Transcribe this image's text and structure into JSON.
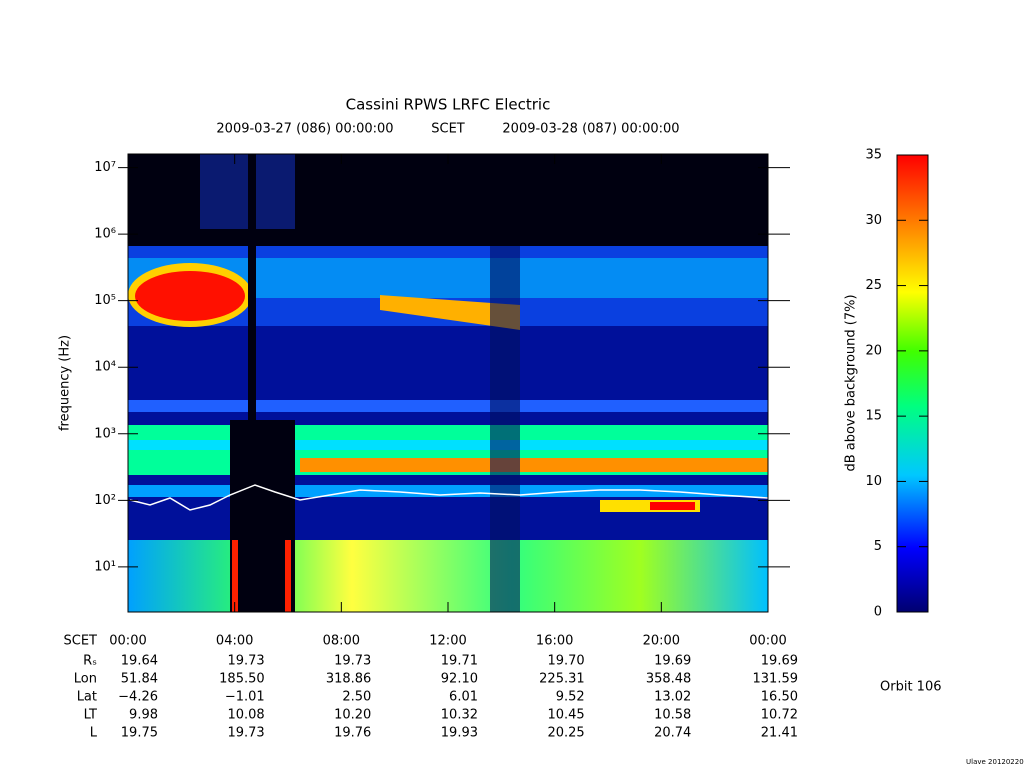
{
  "chart_data": {
    "type": "spectrogram",
    "title": "Cassini RPWS LRFC Electric",
    "subtitle": {
      "start": "2009-03-27 (086) 00:00:00",
      "mid": "SCET",
      "end": "2009-03-28 (087) 00:00:00"
    },
    "y_label": "frequency (Hz)",
    "log_scale": true,
    "ylim": [
      2.1,
      16000000
    ],
    "yticks": [
      {
        "value": 10,
        "label": "10¹"
      },
      {
        "value": 100,
        "label": "10²"
      },
      {
        "value": 1000,
        "label": "10³"
      },
      {
        "value": 10000,
        "label": "10⁴"
      },
      {
        "value": 100000,
        "label": "10⁵"
      },
      {
        "value": 1000000,
        "label": "10⁶"
      },
      {
        "value": 10000000,
        "label": "10⁷"
      }
    ],
    "x_label": "SCET",
    "xlim": [
      0,
      24
    ],
    "xticks": [
      {
        "value": 0,
        "label": "00:00"
      },
      {
        "value": 4,
        "label": "04:00"
      },
      {
        "value": 8,
        "label": "08:00"
      },
      {
        "value": 12,
        "label": "12:00"
      },
      {
        "value": 16,
        "label": "16:00"
      },
      {
        "value": 20,
        "label": "20:00"
      },
      {
        "value": 24,
        "label": "00:00"
      }
    ],
    "ephemeris": [
      {
        "name": "Rₛ",
        "values": [
          "19.64",
          "19.73",
          "19.73",
          "19.71",
          "19.70",
          "19.69",
          "19.69"
        ]
      },
      {
        "name": "Lon",
        "values": [
          "51.84",
          "185.50",
          "318.86",
          "92.10",
          "225.31",
          "358.48",
          "131.59"
        ]
      },
      {
        "name": "Lat",
        "values": [
          "−4.26",
          "−1.01",
          "2.50",
          "6.01",
          "9.52",
          "13.02",
          "16.50"
        ]
      },
      {
        "name": "LT",
        "values": [
          "9.98",
          "10.08",
          "10.20",
          "10.32",
          "10.45",
          "10.58",
          "10.72"
        ]
      },
      {
        "name": "L",
        "values": [
          "19.75",
          "19.73",
          "19.76",
          "19.93",
          "20.25",
          "20.74",
          "21.41"
        ]
      }
    ],
    "colorbar": {
      "label": "dB above background (7%)",
      "lim": [
        0,
        35
      ],
      "ticks": [
        0,
        5,
        10,
        15,
        20,
        25,
        30,
        35
      ]
    },
    "orbit": "Orbit 106",
    "credit": "Ulave 20120220"
  }
}
